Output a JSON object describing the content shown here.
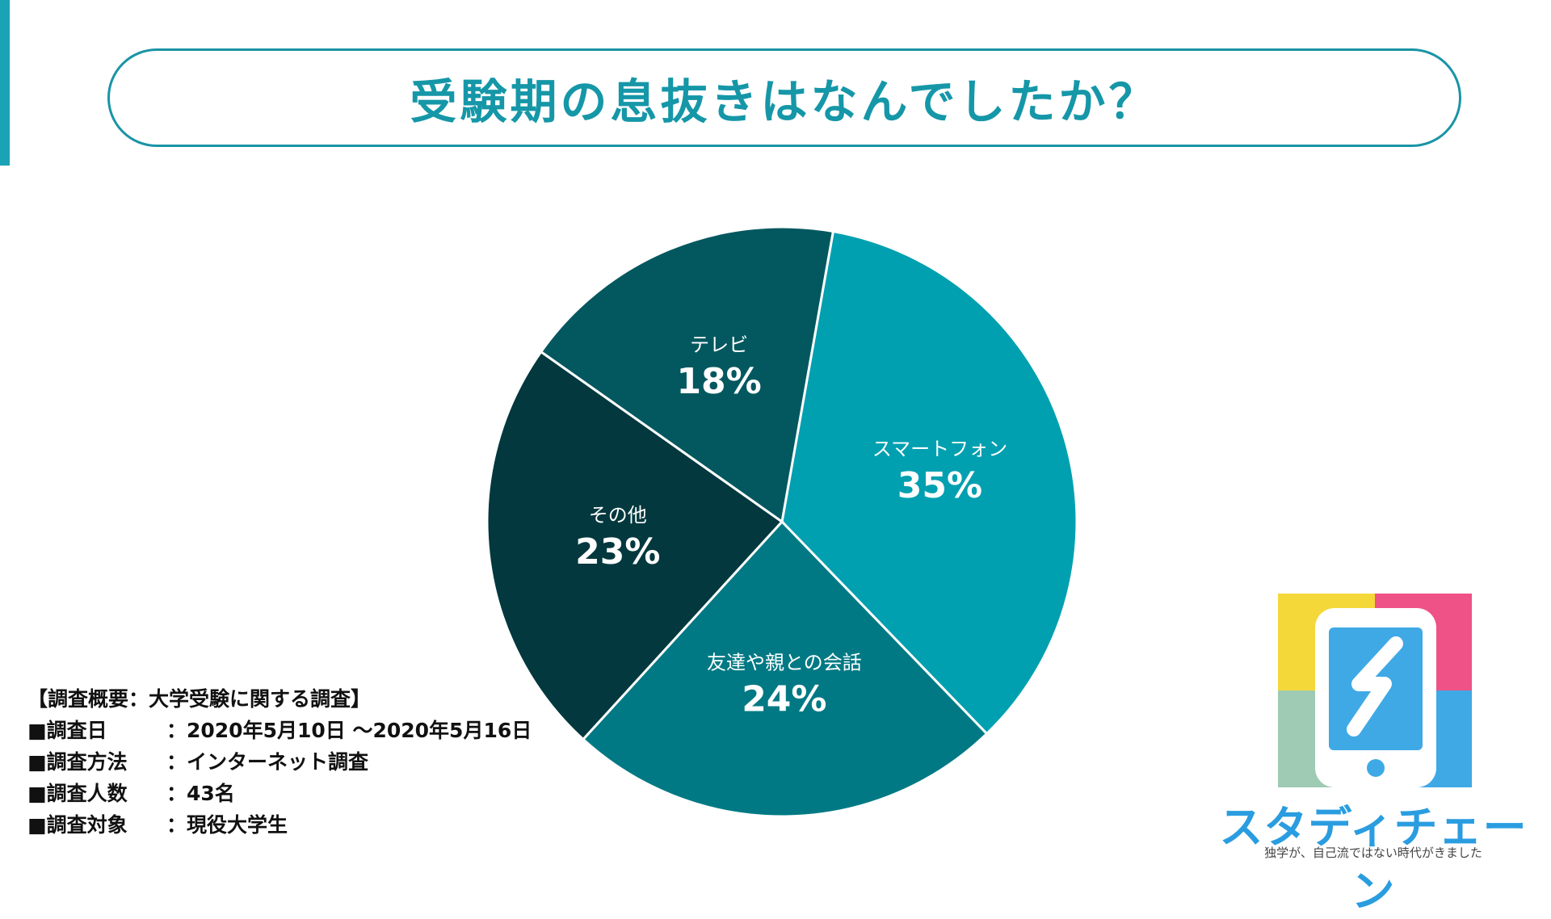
{
  "title": "受験期の息抜きはなんでしたか？",
  "colors": {
    "accent": "#1aa3b4",
    "title": "#1597a8",
    "slice_smartphone": "#00a0b0",
    "slice_conversation": "#007984",
    "slice_other": "#02383e",
    "slice_tv": "#03585f"
  },
  "chart_data": {
    "type": "pie",
    "start_angle_deg": 10,
    "direction": "clockwise",
    "slices": [
      {
        "label": "スマートフォン",
        "value": 35,
        "display": "35%",
        "color": "#00a0b0"
      },
      {
        "label": "友達や親との会話",
        "value": 24,
        "display": "24%",
        "color": "#007984"
      },
      {
        "label": "その他",
        "value": 23,
        "display": "23%",
        "color": "#02383e"
      },
      {
        "label": "テレビ",
        "value": 18,
        "display": "18%",
        "color": "#03585f"
      }
    ]
  },
  "survey": {
    "heading": "【調査概要：大学受験に関する調査】",
    "rows": [
      {
        "key": "■調査日",
        "value": "：2020年5月10日 〜2020年5月16日"
      },
      {
        "key": "■調査方法",
        "value": "：インターネット調査"
      },
      {
        "key": "■調査人数",
        "value": "：43名"
      },
      {
        "key": "■調査対象",
        "value": "：現役大学生"
      }
    ]
  },
  "logo": {
    "name": "スタディチェーン",
    "tagline": "独学が、自己流ではない時代がきました",
    "icon": "smartphone-s-logo-icon",
    "colors": {
      "yellow": "#f4d83a",
      "pink": "#ef5286",
      "green": "#9fcbb4",
      "blue": "#3fa9e6"
    }
  }
}
